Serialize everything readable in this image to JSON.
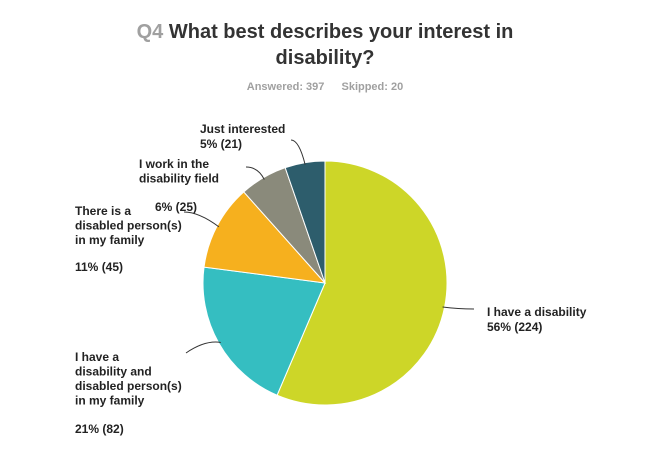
{
  "question": {
    "number": "Q4",
    "title_line1": "What best describes your interest in",
    "title_line2": "disability?"
  },
  "summary": {
    "answered": "Answered: 397",
    "skipped": "Skipped: 20"
  },
  "chart_data": {
    "type": "pie",
    "slices": [
      {
        "label": "I have a disability",
        "percent": 56,
        "count": 224,
        "value_text": "56% (224)",
        "color": "#cdd628"
      },
      {
        "label": "I have a disability and disabled person(s) in my family",
        "percent": 21,
        "count": 82,
        "value_text": "21% (82)",
        "color": "#35bec1"
      },
      {
        "label": "There is a disabled person(s) in my family",
        "percent": 11,
        "count": 45,
        "value_text": "11% (45)",
        "color": "#f6b01e"
      },
      {
        "label": "I work in the disability field",
        "percent": 6,
        "count": 25,
        "value_text": "6% (25)",
        "color": "#8a8a7b"
      },
      {
        "label": "Just interested",
        "percent": 5,
        "count": 21,
        "value_text": "5% (21)",
        "color": "#2d5d6c"
      }
    ]
  }
}
